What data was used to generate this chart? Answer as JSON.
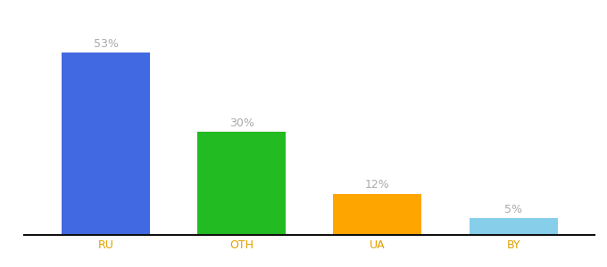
{
  "categories": [
    "RU",
    "OTH",
    "UA",
    "BY"
  ],
  "values": [
    53,
    30,
    12,
    5
  ],
  "bar_colors": [
    "#4169E1",
    "#22BB22",
    "#FFA500",
    "#87CEEB"
  ],
  "labels": [
    "53%",
    "30%",
    "12%",
    "5%"
  ],
  "ylim": [
    0,
    62
  ],
  "background_color": "#ffffff",
  "label_color": "#aaaaaa",
  "bar_width": 0.65,
  "label_fontsize": 9,
  "tick_fontsize": 9,
  "tick_color": "#e0a000"
}
